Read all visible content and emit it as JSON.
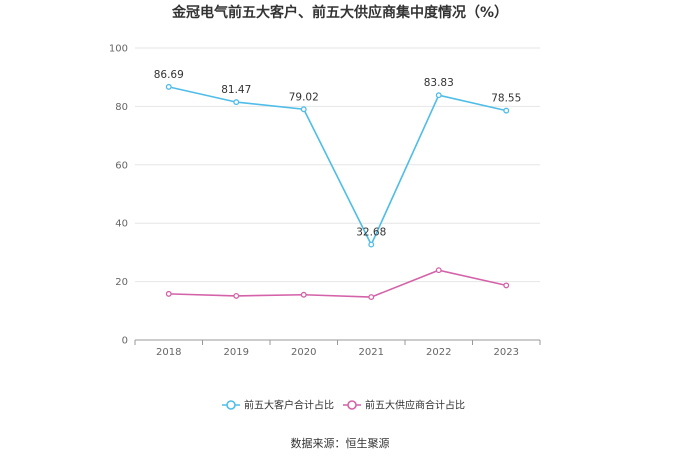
{
  "chart_data": {
    "type": "line",
    "title": "金冠电气前五大客户、前五大供应商集中度情况（%）",
    "x": [
      "2018",
      "2019",
      "2020",
      "2021",
      "2022",
      "2023"
    ],
    "ylim": [
      0,
      100
    ],
    "yticks": [
      0,
      20,
      40,
      60,
      80,
      100
    ],
    "grid": "horizontal",
    "legend_position": "bottom",
    "series": [
      {
        "name": "前五大客户合计占比",
        "color": "#4fbde8",
        "values": [
          86.69,
          81.47,
          79.02,
          32.68,
          83.83,
          78.55
        ],
        "labels": [
          "86.69",
          "81.47",
          "79.02",
          "32.68",
          "83.83",
          "78.55"
        ]
      },
      {
        "name": "前五大供应商合计占比",
        "color": "#d462a8",
        "values": [
          15.8,
          15.1,
          15.5,
          14.7,
          23.9,
          18.7
        ],
        "labels": []
      }
    ]
  },
  "source": "数据来源：恒生聚源"
}
